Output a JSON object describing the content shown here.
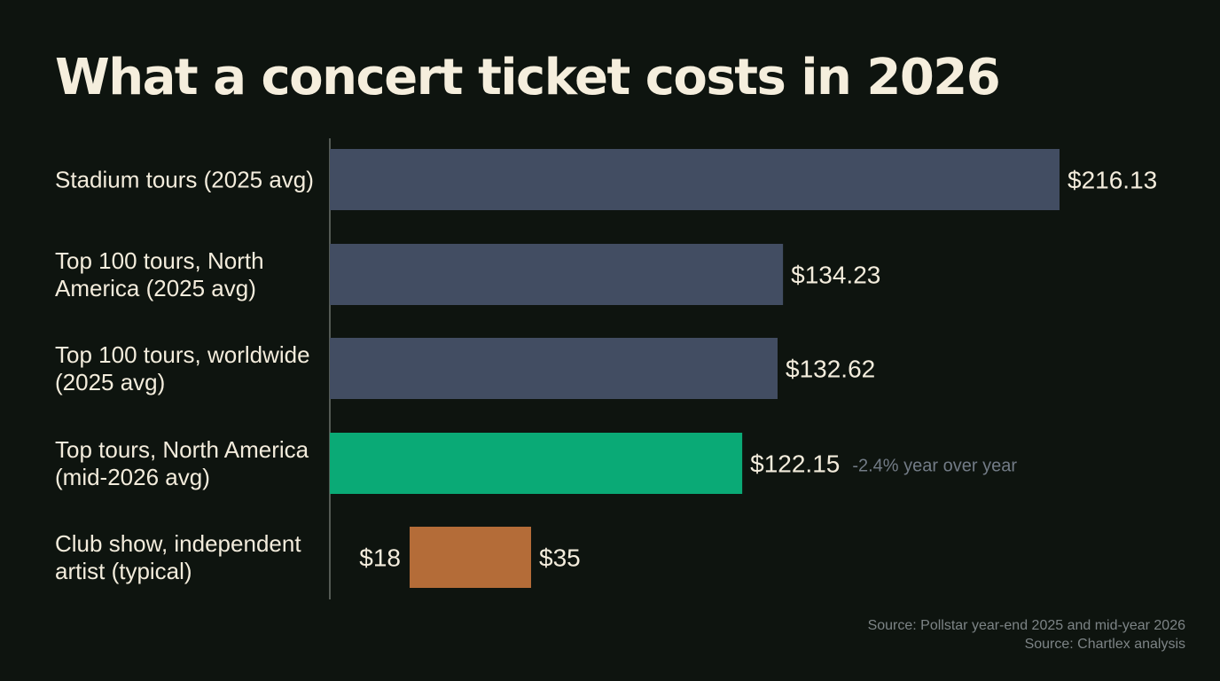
{
  "title": "What a concert ticket costs in 2026",
  "colors": {
    "background": "#0e140f",
    "text": "#f3ecdc",
    "bar_default": "#424d62",
    "bar_highlight": "#0aaa76",
    "bar_range": "#b46c38",
    "annotation": "#727b86",
    "axis": "#6c716c"
  },
  "chart_data": {
    "type": "bar",
    "orientation": "horizontal",
    "categories": [
      [
        "Stadium tours (2025 avg)"
      ],
      [
        "Top 100 tours, North",
        "America (2025 avg)"
      ],
      [
        "Top 100 tours, worldwide",
        "(2025 avg)"
      ],
      [
        "Top tours, North America",
        "(mid-2026 avg)"
      ],
      [
        "Club show, independent",
        "artist (typical)"
      ]
    ],
    "bars": [
      {
        "value": 216.13,
        "label": "$216.13",
        "style": "default"
      },
      {
        "value": 134.23,
        "label": "$134.23",
        "style": "default"
      },
      {
        "value": 132.62,
        "label": "$132.62",
        "style": "default"
      },
      {
        "value": 122.15,
        "label": "$122.15",
        "style": "highlight",
        "annotation": "-2.4% year over year"
      },
      {
        "min": 18,
        "max": 35,
        "min_label": "$18",
        "max_label": "$35",
        "style": "range"
      }
    ],
    "xlim": [
      0,
      216.13
    ],
    "grid": false,
    "legend": "none"
  },
  "source": [
    "Source: Pollstar year-end 2025 and mid-year 2026",
    "Source: Chartlex analysis"
  ]
}
